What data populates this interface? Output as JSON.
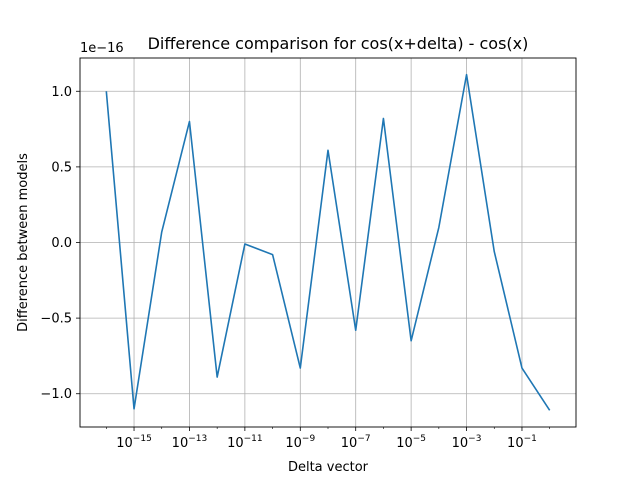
{
  "chart_data": {
    "type": "line",
    "title": "Difference comparison for cos(x+delta) - cos(x)",
    "xlabel": "Delta vector",
    "ylabel": "Difference between models",
    "y_offset_label": "1e−16",
    "x_scale": "log",
    "x_exponent_range": [
      -16.95,
      0.95
    ],
    "ylim": [
      -1.22,
      1.22
    ],
    "y_multiplier": 1e-16,
    "grid": true,
    "color": "#1f77b4",
    "x_ticks": [
      {
        "exp": -15,
        "base": "10",
        "sup": "−15"
      },
      {
        "exp": -13,
        "base": "10",
        "sup": "−13"
      },
      {
        "exp": -11,
        "base": "10",
        "sup": "−11"
      },
      {
        "exp": -9,
        "base": "10",
        "sup": "−9"
      },
      {
        "exp": -7,
        "base": "10",
        "sup": "−7"
      },
      {
        "exp": -5,
        "base": "10",
        "sup": "−5"
      },
      {
        "exp": -3,
        "base": "10",
        "sup": "−3"
      },
      {
        "exp": -1,
        "base": "10",
        "sup": "−1"
      }
    ],
    "y_ticks": [
      {
        "value": 1.0,
        "label": "1.0"
      },
      {
        "value": 0.5,
        "label": "0.5"
      },
      {
        "value": 0.0,
        "label": "0.0"
      },
      {
        "value": -0.5,
        "label": "−0.5"
      },
      {
        "value": -1.0,
        "label": "−1.0"
      }
    ],
    "series": [
      {
        "x_exponents": [
          -16,
          -15,
          -14,
          -13,
          -12,
          -11,
          -10,
          -9,
          -8,
          -7,
          -6,
          -5,
          -4,
          -3,
          -2,
          -1,
          0
        ],
        "values": [
          1.0,
          -1.1,
          0.07,
          0.8,
          -0.89,
          -0.01,
          -0.08,
          -0.83,
          0.61,
          -0.58,
          0.82,
          -0.65,
          0.1,
          1.11,
          -0.06,
          -0.83,
          -1.11
        ]
      }
    ]
  }
}
